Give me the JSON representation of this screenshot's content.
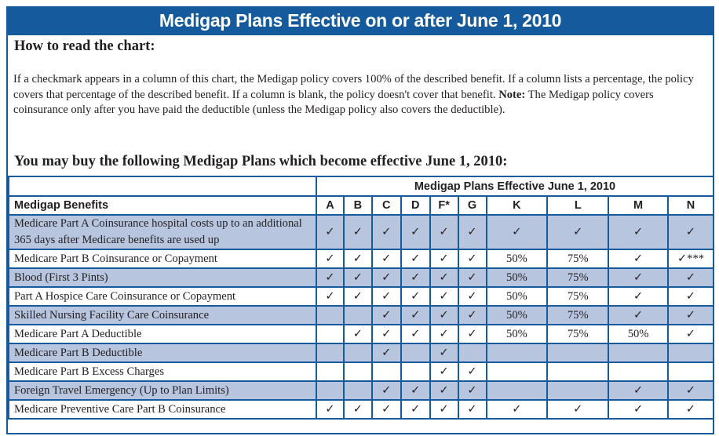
{
  "title": "Medigap Plans Effective on or after June 1, 2010",
  "how_heading": "How to read the chart:",
  "paragraph": "If a checkmark appears in a column of this chart, the Medigap policy covers 100% of the described benefit. If a column lists a percentage, the policy covers that percentage of the described benefit. If a column is blank, the policy doesn't cover that benefit.",
  "note_label": "Note:",
  "note_text": " The Medigap policy covers coinsurance only after you have paid the deductible (unless the Medigap policy also covers the deductible).",
  "buy_heading": "You may buy the following Medigap Plans which become effective June 1, 2010:",
  "table": {
    "group_header": "Medigap Plans Effective June 1, 2010",
    "benefits_header": "Medigap Benefits",
    "plans": [
      "A",
      "B",
      "C",
      "D",
      "F*",
      "G",
      "K",
      "L",
      "M",
      "N"
    ],
    "rows": [
      {
        "benefit": "Medicare Part A Coinsurance hospital costs up to an additional 365 days after Medicare benefits are used up",
        "cells": [
          "✓",
          "✓",
          "✓",
          "✓",
          "✓",
          "✓",
          "✓",
          "✓",
          "✓",
          "✓"
        ]
      },
      {
        "benefit": "Medicare Part B Coinsurance or Copayment",
        "cells": [
          "✓",
          "✓",
          "✓",
          "✓",
          "✓",
          "✓",
          "50%",
          "75%",
          "✓",
          "✓***"
        ]
      },
      {
        "benefit": "Blood (First 3 Pints)",
        "cells": [
          "✓",
          "✓",
          "✓",
          "✓",
          "✓",
          "✓",
          "50%",
          "75%",
          "✓",
          "✓"
        ]
      },
      {
        "benefit": "Part A Hospice Care Coinsurance or Copayment",
        "cells": [
          "✓",
          "✓",
          "✓",
          "✓",
          "✓",
          "✓",
          "50%",
          "75%",
          "✓",
          "✓"
        ]
      },
      {
        "benefit": "Skilled Nursing Facility Care Coinsurance",
        "cells": [
          "",
          "",
          "✓",
          "✓",
          "✓",
          "✓",
          "50%",
          "75%",
          "✓",
          "✓"
        ]
      },
      {
        "benefit": "Medicare Part A Deductible",
        "cells": [
          "",
          "✓",
          "✓",
          "✓",
          "✓",
          "✓",
          "50%",
          "75%",
          "50%",
          "✓"
        ]
      },
      {
        "benefit": "Medicare Part B Deductible",
        "cells": [
          "",
          "",
          "✓",
          "",
          "✓",
          "",
          "",
          "",
          "",
          ""
        ]
      },
      {
        "benefit": "Medicare Part B Excess Charges",
        "cells": [
          "",
          "",
          "",
          "",
          "✓",
          "✓",
          "",
          "",
          "",
          ""
        ]
      },
      {
        "benefit": "Foreign Travel Emergency (Up to Plan Limits)",
        "cells": [
          "",
          "",
          "✓",
          "✓",
          "✓",
          "✓",
          "",
          "",
          "✓",
          "✓"
        ]
      },
      {
        "benefit": "Medicare Preventive Care Part B Coinsurance",
        "cells": [
          "✓",
          "✓",
          "✓",
          "✓",
          "✓",
          "✓",
          "✓",
          "✓",
          "✓",
          "✓"
        ]
      }
    ]
  },
  "colors": {
    "header_blue": "#155a9c",
    "shaded_row": "#b8c5df"
  }
}
